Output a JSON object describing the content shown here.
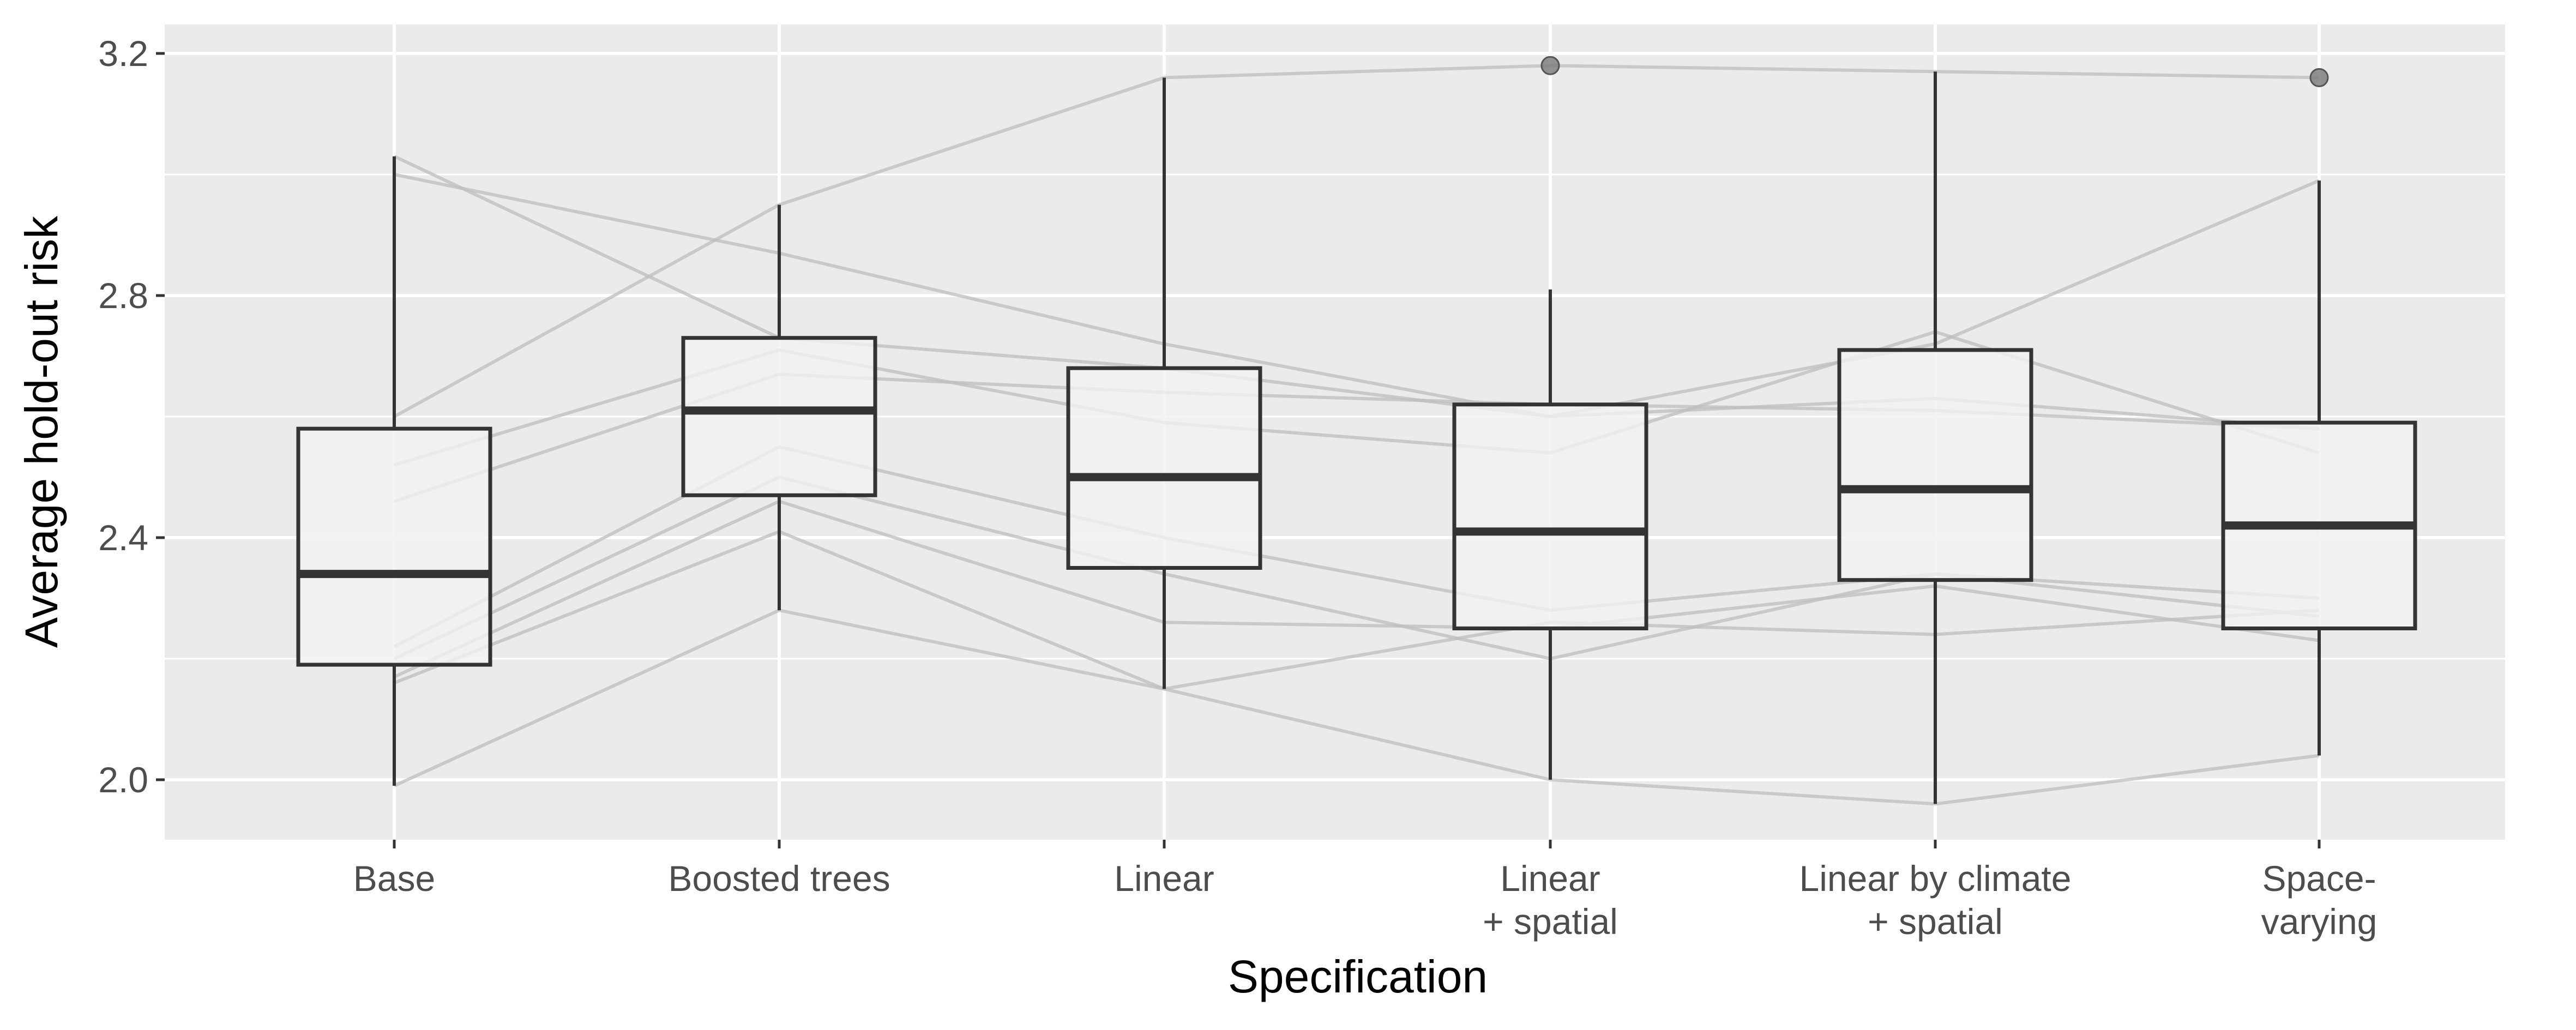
{
  "chart_data": {
    "type": "box",
    "title": "",
    "xlabel": "Specification",
    "ylabel": "Average hold-out risk",
    "ylim": [
      1.9,
      3.24
    ],
    "yticks": [
      2.0,
      2.4,
      2.8,
      3.2
    ],
    "ytick_labels": [
      "2.0",
      "2.4",
      "2.8",
      "3.2"
    ],
    "grid": true,
    "categories": [
      [
        "Base"
      ],
      [
        "Boosted trees"
      ],
      [
        "Linear"
      ],
      [
        "Linear",
        "+ spatial"
      ],
      [
        "Linear by climate",
        "+ spatial"
      ],
      [
        "Space-",
        "varying"
      ]
    ],
    "boxes": [
      {
        "q1": 2.19,
        "median": 2.34,
        "q3": 2.58,
        "whisker_low": 1.99,
        "whisker_high": 3.03,
        "outliers": []
      },
      {
        "q1": 2.47,
        "median": 2.61,
        "q3": 2.73,
        "whisker_low": 2.28,
        "whisker_high": 2.95,
        "outliers": []
      },
      {
        "q1": 2.35,
        "median": 2.5,
        "q3": 2.68,
        "whisker_low": 2.15,
        "whisker_high": 3.16,
        "outliers": []
      },
      {
        "q1": 2.25,
        "median": 2.41,
        "q3": 2.62,
        "whisker_low": 2.0,
        "whisker_high": 2.81,
        "outliers": [
          3.18
        ]
      },
      {
        "q1": 2.33,
        "median": 2.48,
        "q3": 2.71,
        "whisker_low": 1.96,
        "whisker_high": 3.17,
        "outliers": []
      },
      {
        "q1": 2.25,
        "median": 2.42,
        "q3": 2.59,
        "whisker_low": 2.04,
        "whisker_high": 2.99,
        "outliers": [
          3.16
        ]
      }
    ],
    "paths": [
      [
        3.0,
        2.87,
        2.72,
        2.6,
        2.72,
        2.99
      ],
      [
        3.03,
        2.73,
        2.68,
        2.6,
        2.63,
        2.58
      ],
      [
        2.6,
        2.95,
        3.16,
        3.18,
        3.17,
        3.16
      ],
      [
        2.52,
        2.71,
        2.59,
        2.54,
        2.74,
        2.54
      ],
      [
        2.46,
        2.67,
        2.64,
        2.62,
        2.61,
        2.58
      ],
      [
        2.22,
        2.55,
        2.4,
        2.28,
        2.34,
        2.3
      ],
      [
        2.2,
        2.5,
        2.34,
        2.2,
        2.34,
        2.27
      ],
      [
        2.17,
        2.46,
        2.26,
        2.25,
        2.32,
        2.23
      ],
      [
        2.16,
        2.41,
        2.15,
        2.26,
        2.24,
        2.28
      ],
      [
        1.99,
        2.28,
        2.15,
        2.0,
        1.96,
        2.04
      ]
    ],
    "colors": {
      "panel": "#ebebeb",
      "grid": "#ffffff",
      "box_fill": "#f2f2f2",
      "box_stroke": "#333333",
      "path_line": "#bdbdbd",
      "outlier": "#7f7f7f"
    }
  }
}
